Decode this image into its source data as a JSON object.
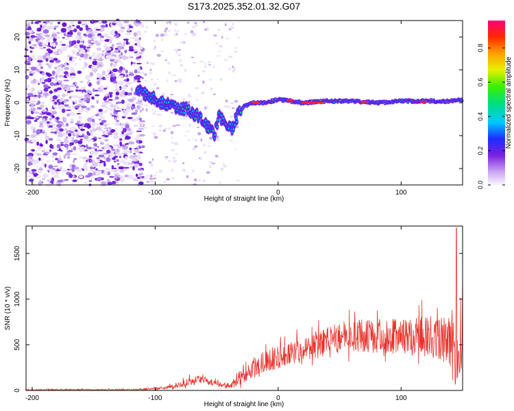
{
  "title": "S173.2025.352.01.32.G07",
  "colors": {
    "snr_line": "#e8302a",
    "axes": "#000000",
    "background": "#ffffff"
  },
  "chart_data": [
    {
      "type": "heatmap",
      "name": "spectrogram",
      "xlabel": "Height of straight line (km)",
      "ylabel": "Frequency (Hz)",
      "xlim": [
        -205,
        150
      ],
      "ylim": [
        -25,
        25
      ],
      "xticks": [
        -200,
        -100,
        0,
        100
      ],
      "yticks": [
        -20,
        -10,
        0,
        10,
        20
      ],
      "colorbar": {
        "label": "Normalized spectral amplitude",
        "range": [
          0,
          0.96
        ],
        "ticks": [
          0.0,
          0.2,
          0.4,
          0.6,
          0.8
        ]
      },
      "ridge": {
        "x": [
          -115,
          -105,
          -95,
          -85,
          -75,
          -65,
          -58,
          -52,
          -48,
          -42,
          -38,
          -33,
          -28,
          -20,
          -10,
          0,
          10,
          20,
          40,
          60,
          80,
          100,
          120,
          140,
          150
        ],
        "y": [
          4,
          2,
          0,
          -1,
          -2,
          -4,
          -7,
          -10,
          -4,
          -7,
          -8,
          -4,
          -1,
          0,
          0,
          1,
          0.5,
          0,
          0.5,
          0.5,
          0,
          0.5,
          0.5,
          0.5,
          1
        ]
      },
      "description_of_noise": "scattered low-amplitude purple speckle from -205 to -110 km across all frequencies"
    },
    {
      "type": "line",
      "name": "snr",
      "xlabel": "Height of straight line (km)",
      "ylabel": "SNR (10 * v/v)",
      "xlim": [
        -205,
        150
      ],
      "ylim": [
        0,
        1800
      ],
      "xticks": [
        -200,
        -100,
        0,
        100
      ],
      "yticks": [
        0,
        500,
        1000,
        1500
      ],
      "envelope": {
        "x": [
          -205,
          -120,
          -95,
          -80,
          -70,
          -60,
          -50,
          -42,
          -35,
          -30,
          -25,
          -15,
          -5,
          5,
          20,
          35,
          50,
          70,
          90,
          110,
          125,
          135,
          142,
          145,
          150
        ],
        "base": [
          5,
          5,
          15,
          50,
          90,
          100,
          60,
          40,
          60,
          130,
          190,
          250,
          310,
          340,
          410,
          470,
          520,
          540,
          540,
          520,
          490,
          470,
          420,
          200,
          600
        ],
        "spread": [
          15,
          15,
          25,
          60,
          100,
          80,
          60,
          50,
          80,
          200,
          240,
          240,
          250,
          260,
          280,
          320,
          360,
          360,
          380,
          440,
          480,
          520,
          560,
          700,
          900
        ]
      },
      "peak": {
        "x": 145,
        "y": 1780
      }
    }
  ]
}
